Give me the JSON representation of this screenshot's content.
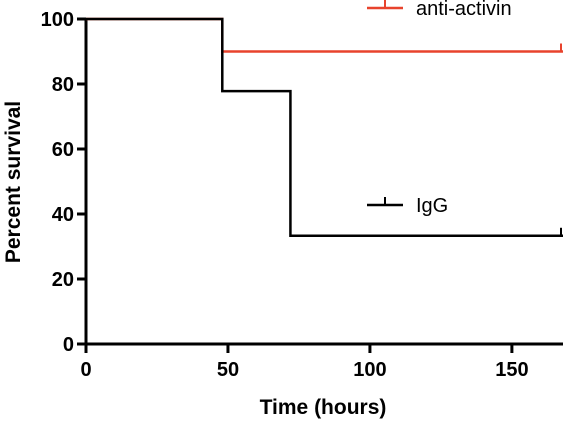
{
  "chart_data": {
    "type": "line",
    "step": true,
    "xlabel": "Time (hours)",
    "ylabel": "Percent survival",
    "xlim": [
      0,
      168
    ],
    "ylim": [
      0,
      100
    ],
    "x_ticks": [
      0,
      50,
      100,
      150
    ],
    "x_tick_labels": [
      "0",
      "50",
      "100",
      "150"
    ],
    "y_ticks": [
      0,
      20,
      40,
      60,
      80,
      100
    ],
    "y_tick_labels": [
      "0",
      "20",
      "40",
      "60",
      "80",
      "100"
    ],
    "grid": false,
    "series": [
      {
        "name": "anti-activin",
        "color": "#e8432d",
        "x": [
          0,
          48,
          168
        ],
        "y": [
          100,
          90,
          90
        ],
        "censored_at": [
          168
        ]
      },
      {
        "name": "IgG",
        "color": "#000000",
        "x": [
          0,
          48,
          72,
          168
        ],
        "y": [
          100,
          77.8,
          33.3,
          33.3
        ],
        "censored_at": [
          168
        ]
      }
    ]
  }
}
